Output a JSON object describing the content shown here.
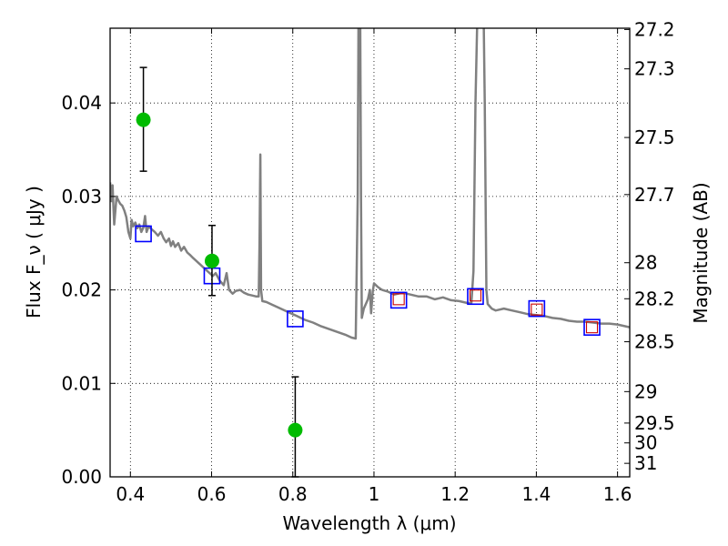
{
  "chart_data": {
    "type": "scatter",
    "xlabel": "Wavelength  λ (μm)",
    "ylabel": "Flux  F_ν  ( μJy )",
    "ylabel_right": "Magnitude (AB)",
    "xlim": [
      0.35,
      1.63
    ],
    "ylim": [
      0.0,
      0.048
    ],
    "grid": true,
    "x_ticks": [
      {
        "value": 0.4,
        "label": "0.4"
      },
      {
        "value": 0.6,
        "label": "0.6"
      },
      {
        "value": 0.8,
        "label": "0.8"
      },
      {
        "value": 1.0,
        "label": "1"
      },
      {
        "value": 1.2,
        "label": "1.2"
      },
      {
        "value": 1.4,
        "label": "1.4"
      },
      {
        "value": 1.6,
        "label": "1.6"
      }
    ],
    "y_ticks": [
      {
        "value": 0.0,
        "label": "0.00"
      },
      {
        "value": 0.01,
        "label": "0.01"
      },
      {
        "value": 0.02,
        "label": "0.02"
      },
      {
        "value": 0.03,
        "label": "0.03"
      },
      {
        "value": 0.04,
        "label": "0.04"
      }
    ],
    "right_ticks": [
      {
        "value": 27.2,
        "label": "27.2"
      },
      {
        "value": 27.3,
        "label": "27.3"
      },
      {
        "value": 27.5,
        "label": "27.5"
      },
      {
        "value": 27.7,
        "label": "27.7"
      },
      {
        "value": 28.0,
        "label": "28"
      },
      {
        "value": 28.2,
        "label": "28.2"
      },
      {
        "value": 28.5,
        "label": "28.5"
      },
      {
        "value": 29.0,
        "label": "29"
      },
      {
        "value": 29.5,
        "label": "29.5"
      },
      {
        "value": 30.0,
        "label": "30"
      },
      {
        "value": 31.0,
        "label": "31"
      }
    ],
    "series": [
      {
        "kind": "line",
        "color": "#808080",
        "points": [
          [
            0.35,
            0.0315
          ],
          [
            0.353,
            0.0295
          ],
          [
            0.356,
            0.0312
          ],
          [
            0.358,
            0.029
          ],
          [
            0.36,
            0.027
          ],
          [
            0.363,
            0.0285
          ],
          [
            0.366,
            0.03
          ],
          [
            0.37,
            0.0296
          ],
          [
            0.375,
            0.0292
          ],
          [
            0.38,
            0.029
          ],
          [
            0.385,
            0.0285
          ],
          [
            0.39,
            0.0278
          ],
          [
            0.395,
            0.0262
          ],
          [
            0.4,
            0.0255
          ],
          [
            0.403,
            0.0275
          ],
          [
            0.407,
            0.0268
          ],
          [
            0.412,
            0.0272
          ],
          [
            0.417,
            0.0266
          ],
          [
            0.422,
            0.027
          ],
          [
            0.427,
            0.0262
          ],
          [
            0.432,
            0.0267
          ],
          [
            0.436,
            0.0279
          ],
          [
            0.44,
            0.0262
          ],
          [
            0.445,
            0.0268
          ],
          [
            0.452,
            0.0265
          ],
          [
            0.46,
            0.0262
          ],
          [
            0.468,
            0.0258
          ],
          [
            0.475,
            0.0262
          ],
          [
            0.482,
            0.0255
          ],
          [
            0.488,
            0.0251
          ],
          [
            0.495,
            0.0255
          ],
          [
            0.5,
            0.0247
          ],
          [
            0.505,
            0.0252
          ],
          [
            0.51,
            0.0246
          ],
          [
            0.518,
            0.025
          ],
          [
            0.525,
            0.0242
          ],
          [
            0.532,
            0.0246
          ],
          [
            0.54,
            0.024
          ],
          [
            0.548,
            0.0237
          ],
          [
            0.555,
            0.0234
          ],
          [
            0.565,
            0.023
          ],
          [
            0.575,
            0.0226
          ],
          [
            0.585,
            0.0222
          ],
          [
            0.595,
            0.0218
          ],
          [
            0.603,
            0.0215
          ],
          [
            0.61,
            0.0218
          ],
          [
            0.62,
            0.021
          ],
          [
            0.63,
            0.0205
          ],
          [
            0.637,
            0.0218
          ],
          [
            0.643,
            0.02
          ],
          [
            0.652,
            0.0196
          ],
          [
            0.66,
            0.0199
          ],
          [
            0.67,
            0.02
          ],
          [
            0.68,
            0.0197
          ],
          [
            0.69,
            0.0195
          ],
          [
            0.7,
            0.0194
          ],
          [
            0.71,
            0.0193
          ],
          [
            0.716,
            0.0193
          ],
          [
            0.718,
            0.025
          ],
          [
            0.72,
            0.0345
          ],
          [
            0.722,
            0.02
          ],
          [
            0.725,
            0.0188
          ],
          [
            0.735,
            0.0187
          ],
          [
            0.75,
            0.0184
          ],
          [
            0.77,
            0.018
          ],
          [
            0.79,
            0.0176
          ],
          [
            0.81,
            0.0172
          ],
          [
            0.83,
            0.0168
          ],
          [
            0.85,
            0.0165
          ],
          [
            0.87,
            0.0161
          ],
          [
            0.89,
            0.0158
          ],
          [
            0.91,
            0.0155
          ],
          [
            0.93,
            0.0152
          ],
          [
            0.945,
            0.0149
          ],
          [
            0.955,
            0.0148
          ],
          [
            0.96,
            0.03
          ],
          [
            0.962,
            0.05
          ],
          [
            0.966,
            0.05
          ],
          [
            0.968,
            0.03
          ],
          [
            0.97,
            0.017
          ],
          [
            0.975,
            0.018
          ],
          [
            0.985,
            0.019
          ],
          [
            0.99,
            0.02
          ],
          [
            0.993,
            0.0175
          ],
          [
            0.997,
            0.0198
          ],
          [
            1.0,
            0.0207
          ],
          [
            1.01,
            0.0203
          ],
          [
            1.02,
            0.02
          ],
          [
            1.035,
            0.0198
          ],
          [
            1.05,
            0.0195
          ],
          [
            1.07,
            0.0197
          ],
          [
            1.09,
            0.0195
          ],
          [
            1.11,
            0.0193
          ],
          [
            1.13,
            0.0193
          ],
          [
            1.15,
            0.019
          ],
          [
            1.17,
            0.0192
          ],
          [
            1.19,
            0.0189
          ],
          [
            1.21,
            0.0188
          ],
          [
            1.23,
            0.0186
          ],
          [
            1.24,
            0.0186
          ],
          [
            1.245,
            0.022
          ],
          [
            1.25,
            0.04
          ],
          [
            1.255,
            0.05
          ],
          [
            1.27,
            0.05
          ],
          [
            1.273,
            0.04
          ],
          [
            1.277,
            0.02
          ],
          [
            1.28,
            0.0185
          ],
          [
            1.29,
            0.018
          ],
          [
            1.3,
            0.0178
          ],
          [
            1.32,
            0.018
          ],
          [
            1.34,
            0.0178
          ],
          [
            1.36,
            0.0176
          ],
          [
            1.38,
            0.0174
          ],
          [
            1.4,
            0.0173
          ],
          [
            1.42,
            0.0172
          ],
          [
            1.44,
            0.017
          ],
          [
            1.46,
            0.0169
          ],
          [
            1.48,
            0.0167
          ],
          [
            1.5,
            0.0166
          ],
          [
            1.52,
            0.0166
          ],
          [
            1.54,
            0.0165
          ],
          [
            1.56,
            0.0164
          ],
          [
            1.58,
            0.0164
          ],
          [
            1.6,
            0.0163
          ],
          [
            1.62,
            0.0161
          ],
          [
            1.63,
            0.016
          ]
        ]
      },
      {
        "kind": "open-square",
        "color": "#0000ff",
        "points": [
          [
            0.432,
            0.026
          ],
          [
            0.601,
            0.0215
          ],
          [
            0.806,
            0.0169
          ],
          [
            1.061,
            0.0189
          ],
          [
            1.25,
            0.0193
          ],
          [
            1.401,
            0.018
          ],
          [
            1.537,
            0.016
          ]
        ]
      },
      {
        "kind": "open-square-small",
        "color": "#cc0000",
        "points": [
          [
            1.061,
            0.019
          ],
          [
            1.25,
            0.0194
          ],
          [
            1.401,
            0.0179
          ],
          [
            1.537,
            0.016
          ]
        ]
      },
      {
        "kind": "dot-errorbar",
        "color": "#00bb00",
        "points": [
          {
            "x": 0.432,
            "y": 0.0382,
            "ylo": 0.0327,
            "yhi": 0.0438
          },
          {
            "x": 0.601,
            "y": 0.0231,
            "ylo": 0.0194,
            "yhi": 0.0269
          },
          {
            "x": 0.806,
            "y": 0.005,
            "ylo": 0.0,
            "yhi": 0.0107
          }
        ]
      }
    ]
  }
}
